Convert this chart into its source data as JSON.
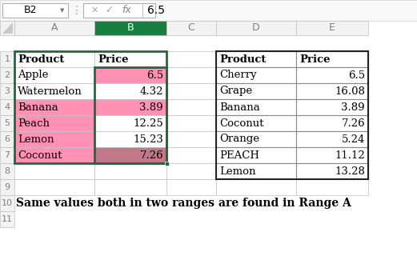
{
  "title_bar": "B2",
  "formula_value": "6.5",
  "range_a": {
    "headers": [
      "Product",
      "Price"
    ],
    "rows": [
      [
        "Apple",
        "6.5",
        "white",
        "#FF91B4"
      ],
      [
        "Watermelon",
        "4.32",
        "white",
        "white"
      ],
      [
        "Banana",
        "3.89",
        "#FF91B4",
        "#FF91B4"
      ],
      [
        "Peach",
        "12.25",
        "#FF91B4",
        "white"
      ],
      [
        "Lemon",
        "15.23",
        "#FF91B4",
        "white"
      ],
      [
        "Coconut",
        "7.26",
        "#FF91B4",
        "#C0788A"
      ]
    ]
  },
  "range_b": {
    "headers": [
      "Product",
      "Price"
    ],
    "rows": [
      [
        "Cherry",
        "6.5"
      ],
      [
        "Grape",
        "16.08"
      ],
      [
        "Banana",
        "3.89"
      ],
      [
        "Coconut",
        "7.26"
      ],
      [
        "Orange",
        "5.24"
      ],
      [
        "PEACH",
        "11.12"
      ],
      [
        "Lemon",
        "13.28"
      ]
    ]
  },
  "bottom_text": "Same values both in two ranges are found in Range A",
  "bg_color": "#ffffff",
  "grid_line_color": "#c0c0c0",
  "col_header_color": "#f2f2f2",
  "col_header_text_color": "#808080",
  "selected_col_header_bg": "#167f3e",
  "selected_col_header_text": "#ffffff",
  "row_num_color": "#808080",
  "selected_border": "#1d6b38",
  "handle_color": "#1d6b38",
  "toolbar_bg": "#f8f8f8",
  "toolbar_border": "#d0d0d0",
  "namebox_border": "#b0b0b0",
  "formula_icon_color": "#b0b0b0",
  "range_b_border": "#222222",
  "range_a_border": "#1d6b38"
}
